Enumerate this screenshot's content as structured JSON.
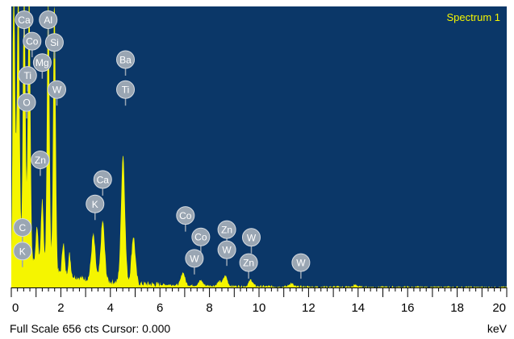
{
  "chart_data": {
    "type": "spectrum",
    "series_name": "Spectrum 1",
    "xlim": [
      0,
      20
    ],
    "ylim": [
      0,
      656
    ],
    "x_ticks": [
      0,
      2,
      4,
      6,
      8,
      10,
      12,
      14,
      16,
      18,
      20
    ],
    "x_unit": "keV",
    "full_scale_label": "Full Scale 656 cts Cursor: 0.000",
    "background_color": "#0b3768",
    "trace_color": "#f5f500",
    "marker_color": "#9aa6b3",
    "peaks": [
      {
        "x": 0.1,
        "y": 656
      },
      {
        "x": 0.28,
        "y": 656
      },
      {
        "x": 0.52,
        "y": 656
      },
      {
        "x": 0.72,
        "y": 656
      },
      {
        "x": 1.04,
        "y": 90
      },
      {
        "x": 1.25,
        "y": 160
      },
      {
        "x": 1.49,
        "y": 656
      },
      {
        "x": 1.74,
        "y": 656
      },
      {
        "x": 2.1,
        "y": 75
      },
      {
        "x": 2.35,
        "y": 50
      },
      {
        "x": 3.31,
        "y": 105
      },
      {
        "x": 3.69,
        "y": 140
      },
      {
        "x": 4.51,
        "y": 300
      },
      {
        "x": 4.93,
        "y": 110
      },
      {
        "x": 6.93,
        "y": 30
      },
      {
        "x": 7.65,
        "y": 12
      },
      {
        "x": 8.4,
        "y": 10
      },
      {
        "x": 8.64,
        "y": 24
      },
      {
        "x": 9.67,
        "y": 15
      },
      {
        "x": 11.29,
        "y": 8
      },
      {
        "x": 13.9,
        "y": 5
      }
    ],
    "element_labels": [
      {
        "text": "Ca",
        "x": 0.52,
        "y": 625
      },
      {
        "text": "Al",
        "x": 1.49,
        "y": 625
      },
      {
        "text": "Co",
        "x": 0.84,
        "y": 575
      },
      {
        "text": "Si",
        "x": 1.74,
        "y": 572
      },
      {
        "text": "Mg",
        "x": 1.25,
        "y": 525
      },
      {
        "text": "Ti",
        "x": 0.66,
        "y": 495
      },
      {
        "text": "W",
        "x": 1.84,
        "y": 462
      },
      {
        "text": "O",
        "x": 0.62,
        "y": 432
      },
      {
        "text": "Ba",
        "x": 4.61,
        "y": 532
      },
      {
        "text": "Ti",
        "x": 4.61,
        "y": 462
      },
      {
        "text": "Zn",
        "x": 1.17,
        "y": 298
      },
      {
        "text": "Ca",
        "x": 3.69,
        "y": 252
      },
      {
        "text": "K",
        "x": 3.38,
        "y": 195
      },
      {
        "text": "C",
        "x": 0.45,
        "y": 140
      },
      {
        "text": "K",
        "x": 0.45,
        "y": 85
      },
      {
        "text": "Co",
        "x": 7.03,
        "y": 168
      },
      {
        "text": "Co",
        "x": 7.65,
        "y": 118
      },
      {
        "text": "Zn",
        "x": 8.7,
        "y": 135
      },
      {
        "text": "W",
        "x": 9.69,
        "y": 117
      },
      {
        "text": "W",
        "x": 8.7,
        "y": 88
      },
      {
        "text": "W",
        "x": 7.39,
        "y": 68
      },
      {
        "text": "Zn",
        "x": 9.58,
        "y": 58
      },
      {
        "text": "W",
        "x": 11.69,
        "y": 58
      }
    ]
  }
}
